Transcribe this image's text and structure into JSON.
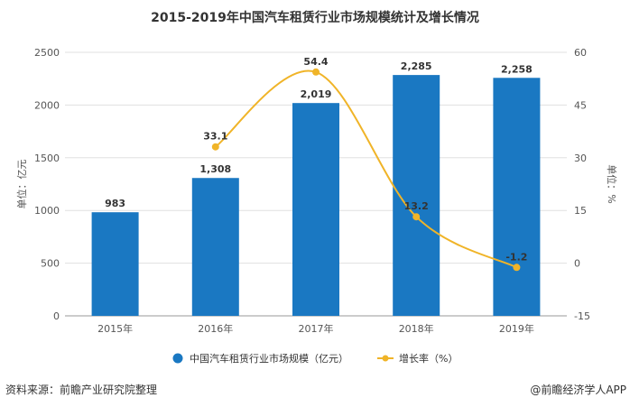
{
  "chart_data": {
    "type": "bar",
    "title": "2015-2019年中国汽车租赁行业市场规模统计及增长情况",
    "categories": [
      "2015年",
      "2016年",
      "2017年",
      "2018年",
      "2019年"
    ],
    "series": [
      {
        "name": "中国汽车租赁行业市场规模（亿元）",
        "type": "bar",
        "axis": "left",
        "values": [
          983,
          1308,
          2019,
          2285,
          2258
        ],
        "labels": [
          "983",
          "1,308",
          "2,019",
          "2,285",
          "2,258"
        ],
        "color": "#1a78c2"
      },
      {
        "name": "增长率（%）",
        "type": "line",
        "axis": "right",
        "values": [
          null,
          33.1,
          54.4,
          13.2,
          -1.2
        ],
        "labels": [
          "",
          "33.1",
          "54.4",
          "13.2",
          "-1.2"
        ],
        "color": "#f0b428",
        "smooth": true
      }
    ],
    "ylabel": "单位：亿元",
    "y2label": "单位：%",
    "ylim": [
      0,
      2500
    ],
    "yticks": [
      "0",
      "500",
      "1000",
      "1500",
      "2000",
      "2500"
    ],
    "y2lim": [
      -15,
      60
    ],
    "y2ticks": [
      "-15",
      "0",
      "15",
      "30",
      "45",
      "60"
    ],
    "grid": true,
    "legend": "bottom"
  },
  "footer": {
    "source": "资料来源：前瞻产业研究院整理",
    "credit": "@前瞻经济学人APP"
  }
}
